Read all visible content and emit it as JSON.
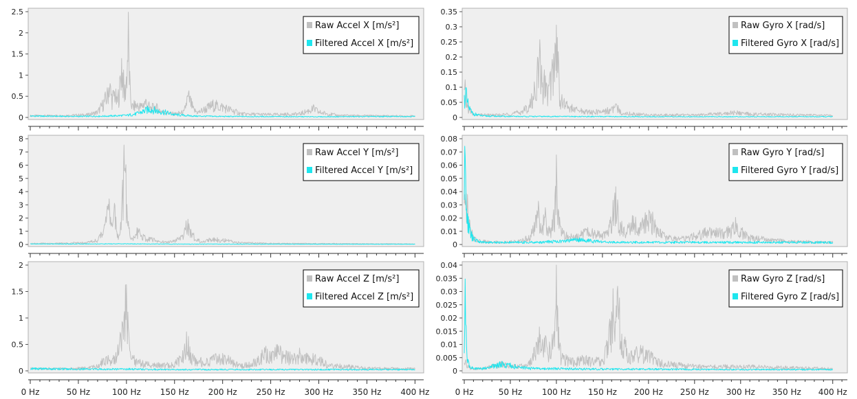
{
  "colors": {
    "raw": "#c0c0c0",
    "filtered": "#1ee6ee",
    "plot_bg": "#efefef",
    "frame": "#b0b0b0",
    "tick_text": "#222222"
  },
  "x_axis": {
    "ticks": [
      0,
      50,
      100,
      150,
      200,
      250,
      300,
      350,
      400
    ],
    "tick_labels": [
      "0 Hz",
      "50 Hz",
      "100 Hz",
      "150 Hz",
      "200 Hz",
      "250 Hz",
      "300 Hz",
      "350 Hz",
      "400 Hz"
    ],
    "range": [
      0,
      410
    ]
  },
  "chart_data": [
    {
      "type": "line",
      "id": "accel-x",
      "legend_position": "top-right",
      "legend": [
        "Raw Accel X [m/s²]",
        "Filtered Accel X [m/s²]"
      ],
      "ylim": [
        0,
        2.5
      ],
      "yticks": [
        0,
        0.5,
        1,
        1.5,
        2,
        2.5
      ],
      "ytick_labels": [
        "0",
        "0.5",
        "1",
        "1.5",
        "2",
        "2.5"
      ],
      "series": [
        {
          "name": "Raw Accel X [m/s²]",
          "role": "raw",
          "x": [
            0,
            20,
            40,
            60,
            70,
            75,
            80,
            82,
            85,
            88,
            90,
            93,
            95,
            98,
            100,
            102,
            103,
            104,
            106,
            110,
            115,
            120,
            125,
            130,
            135,
            140,
            145,
            150,
            160,
            163,
            165,
            170,
            175,
            190,
            200,
            210,
            220,
            250,
            280,
            290,
            295,
            300,
            320,
            350,
            400
          ],
          "y": [
            0.05,
            0.05,
            0.06,
            0.08,
            0.15,
            0.35,
            0.6,
            0.95,
            0.5,
            0.7,
            0.4,
            0.8,
            1.55,
            0.6,
            1.1,
            2.2,
            1.3,
            0.6,
            0.3,
            0.35,
            0.3,
            0.45,
            0.25,
            0.3,
            0.2,
            0.15,
            0.12,
            0.1,
            0.15,
            0.5,
            0.55,
            0.2,
            0.15,
            0.35,
            0.3,
            0.2,
            0.1,
            0.08,
            0.1,
            0.2,
            0.25,
            0.15,
            0.06,
            0.05,
            0.04
          ]
        },
        {
          "name": "Filtered Accel X [m/s²]",
          "role": "filtered",
          "x": [
            0,
            50,
            80,
            100,
            110,
            120,
            125,
            130,
            140,
            150,
            170,
            200,
            300,
            400
          ],
          "y": [
            0.04,
            0.03,
            0.04,
            0.06,
            0.1,
            0.2,
            0.25,
            0.2,
            0.15,
            0.08,
            0.04,
            0.03,
            0.02,
            0.03
          ]
        }
      ]
    },
    {
      "type": "line",
      "id": "gyro-x",
      "legend_position": "top-right",
      "legend": [
        "Raw Gyro X [rad/s]",
        "Filtered Gyro X [rad/s]"
      ],
      "ylim": [
        0,
        0.35
      ],
      "yticks": [
        0,
        0.05,
        0.1,
        0.15,
        0.2,
        0.25,
        0.3,
        0.35
      ],
      "ytick_labels": [
        "0",
        "0.05",
        "0.1",
        "0.15",
        "0.2",
        "0.25",
        "0.3",
        "0.35"
      ],
      "series": [
        {
          "name": "Raw Gyro X [rad/s]",
          "role": "raw",
          "x": [
            0,
            1,
            2,
            5,
            10,
            20,
            40,
            60,
            70,
            75,
            80,
            82,
            85,
            88,
            90,
            95,
            98,
            100,
            102,
            104,
            110,
            120,
            140,
            160,
            163,
            165,
            170,
            180,
            200,
            250,
            280,
            295,
            300,
            350,
            400
          ],
          "y": [
            0.09,
            0.1,
            0.06,
            0.03,
            0.01,
            0.01,
            0.01,
            0.02,
            0.04,
            0.08,
            0.18,
            0.21,
            0.12,
            0.14,
            0.09,
            0.16,
            0.22,
            0.32,
            0.2,
            0.07,
            0.05,
            0.03,
            0.02,
            0.03,
            0.04,
            0.04,
            0.02,
            0.015,
            0.01,
            0.01,
            0.015,
            0.02,
            0.015,
            0.01,
            0.008
          ]
        },
        {
          "name": "Filtered Gyro X [rad/s]",
          "role": "filtered",
          "x": [
            0,
            1,
            2,
            3,
            5,
            8,
            10,
            15,
            20,
            50,
            100,
            200,
            300,
            400
          ],
          "y": [
            0.07,
            0.1,
            0.09,
            0.06,
            0.04,
            0.02,
            0.015,
            0.01,
            0.006,
            0.004,
            0.004,
            0.003,
            0.003,
            0.003
          ]
        }
      ]
    },
    {
      "type": "line",
      "id": "accel-y",
      "legend_position": "top-right",
      "legend": [
        "Raw Accel Y [m/s²]",
        "Filtered Accel Y [m/s²]"
      ],
      "ylim": [
        0,
        8
      ],
      "yticks": [
        0,
        1,
        2,
        3,
        4,
        5,
        6,
        7,
        8
      ],
      "ytick_labels": [
        "0",
        "1",
        "2",
        "3",
        "4",
        "5",
        "6",
        "7",
        "8"
      ],
      "series": [
        {
          "name": "Raw Accel Y [m/s²]",
          "role": "raw",
          "x": [
            0,
            20,
            40,
            60,
            70,
            75,
            78,
            80,
            83,
            85,
            88,
            90,
            92,
            95,
            97,
            99,
            100,
            102,
            104,
            108,
            112,
            120,
            130,
            140,
            150,
            160,
            162,
            165,
            168,
            172,
            180,
            190,
            200,
            210,
            220,
            250,
            300,
            350,
            400
          ],
          "y": [
            0.1,
            0.1,
            0.12,
            0.2,
            0.4,
            1.0,
            2.5,
            5.2,
            2.0,
            1.5,
            2.8,
            1.0,
            0.8,
            2.5,
            5.5,
            7.8,
            4.0,
            1.5,
            0.8,
            0.6,
            1.2,
            0.5,
            0.4,
            0.2,
            0.3,
            0.8,
            1.7,
            1.8,
            1.0,
            0.4,
            0.3,
            0.5,
            0.4,
            0.25,
            0.15,
            0.1,
            0.08,
            0.06,
            0.05
          ]
        },
        {
          "name": "Filtered Accel Y [m/s²]",
          "role": "filtered",
          "x": [
            0,
            50,
            100,
            150,
            200,
            300,
            400
          ],
          "y": [
            0.05,
            0.05,
            0.06,
            0.04,
            0.04,
            0.03,
            0.03
          ]
        }
      ]
    },
    {
      "type": "line",
      "id": "gyro-y",
      "legend_position": "top-right",
      "legend": [
        "Raw Gyro Y [rad/s]",
        "Filtered Gyro Y [rad/s]"
      ],
      "ylim": [
        0,
        0.08
      ],
      "yticks": [
        0,
        0.01,
        0.02,
        0.03,
        0.04,
        0.05,
        0.06,
        0.07,
        0.08
      ],
      "ytick_labels": [
        "0",
        "0.01",
        "0.02",
        "0.03",
        "0.04",
        "0.05",
        "0.06",
        "0.07",
        "0.08"
      ],
      "series": [
        {
          "name": "Raw Gyro Y [rad/s]",
          "role": "raw",
          "x": [
            0,
            1,
            2,
            3,
            5,
            8,
            10,
            15,
            20,
            40,
            60,
            70,
            75,
            78,
            80,
            83,
            85,
            88,
            90,
            95,
            98,
            100,
            102,
            105,
            110,
            120,
            130,
            140,
            150,
            155,
            160,
            163,
            165,
            168,
            170,
            175,
            180,
            185,
            190,
            195,
            200,
            205,
            210,
            220,
            240,
            260,
            270,
            280,
            290,
            293,
            296,
            300,
            310,
            350,
            400
          ],
          "y": [
            0.05,
            0.07,
            0.05,
            0.035,
            0.02,
            0.01,
            0.006,
            0.004,
            0.003,
            0.002,
            0.003,
            0.006,
            0.012,
            0.02,
            0.033,
            0.02,
            0.015,
            0.025,
            0.012,
            0.015,
            0.025,
            0.058,
            0.03,
            0.012,
            0.008,
            0.006,
            0.012,
            0.01,
            0.008,
            0.01,
            0.02,
            0.04,
            0.035,
            0.022,
            0.015,
            0.012,
            0.02,
            0.018,
            0.012,
            0.02,
            0.022,
            0.02,
            0.012,
            0.006,
            0.005,
            0.01,
            0.012,
            0.01,
            0.013,
            0.018,
            0.015,
            0.012,
            0.006,
            0.003,
            0.002
          ]
        },
        {
          "name": "Filtered Gyro Y [rad/s]",
          "role": "filtered",
          "x": [
            0,
            1,
            2,
            3,
            4,
            5,
            8,
            10,
            15,
            20,
            40,
            80,
            100,
            110,
            120,
            130,
            140,
            160,
            200,
            300,
            400
          ],
          "y": [
            0.05,
            0.07,
            0.03,
            0.045,
            0.02,
            0.015,
            0.008,
            0.005,
            0.003,
            0.002,
            0.002,
            0.002,
            0.003,
            0.003,
            0.005,
            0.004,
            0.003,
            0.002,
            0.002,
            0.002,
            0.002
          ]
        }
      ]
    },
    {
      "type": "line",
      "id": "accel-z",
      "legend_position": "top-right",
      "legend": [
        "Raw Accel Z [m/s²]",
        "Filtered Accel Z [m/s²]"
      ],
      "ylim": [
        0,
        2
      ],
      "yticks": [
        0,
        0.5,
        1,
        1.5,
        2
      ],
      "ytick_labels": [
        "0",
        "0.5",
        "1",
        "1.5",
        "2"
      ],
      "series": [
        {
          "name": "Raw Accel Z [m/s²]",
          "role": "raw",
          "x": [
            0,
            20,
            40,
            60,
            70,
            80,
            85,
            90,
            95,
            98,
            100,
            102,
            105,
            110,
            120,
            140,
            150,
            160,
            163,
            165,
            168,
            172,
            180,
            200,
            210,
            220,
            230,
            240,
            245,
            250,
            255,
            260,
            270,
            280,
            290,
            300,
            310,
            330,
            350,
            400
          ],
          "y": [
            0.05,
            0.05,
            0.05,
            0.07,
            0.1,
            0.3,
            0.25,
            0.35,
            0.8,
            1.1,
            1.65,
            0.8,
            0.3,
            0.2,
            0.15,
            0.12,
            0.15,
            0.35,
            0.7,
            0.5,
            0.3,
            0.25,
            0.2,
            0.3,
            0.2,
            0.12,
            0.15,
            0.3,
            0.4,
            0.35,
            0.5,
            0.4,
            0.3,
            0.35,
            0.3,
            0.25,
            0.12,
            0.1,
            0.06,
            0.05
          ]
        },
        {
          "name": "Filtered Accel Z [m/s²]",
          "role": "filtered",
          "x": [
            0,
            50,
            100,
            150,
            200,
            300,
            400
          ],
          "y": [
            0.05,
            0.04,
            0.04,
            0.03,
            0.03,
            0.03,
            0.03
          ]
        }
      ]
    },
    {
      "type": "line",
      "id": "gyro-z",
      "legend_position": "top-right",
      "legend": [
        "Raw Gyro Z [rad/s]",
        "Filtered Gyro Z [rad/s]"
      ],
      "ylim": [
        0,
        0.04
      ],
      "yticks": [
        0,
        0.005,
        0.01,
        0.015,
        0.02,
        0.025,
        0.03,
        0.035,
        0.04
      ],
      "ytick_labels": [
        "0",
        "0.005",
        "0.01",
        "0.015",
        "0.02",
        "0.025",
        "0.03",
        "0.035",
        "0.04"
      ],
      "series": [
        {
          "name": "Raw Gyro Z [rad/s]",
          "role": "raw",
          "x": [
            0,
            1,
            2,
            3,
            5,
            10,
            20,
            30,
            40,
            50,
            60,
            70,
            75,
            78,
            80,
            83,
            85,
            88,
            90,
            95,
            98,
            100,
            102,
            105,
            110,
            120,
            130,
            140,
            150,
            155,
            160,
            163,
            165,
            168,
            170,
            175,
            180,
            190,
            200,
            210,
            220,
            250,
            300,
            350,
            400
          ],
          "y": [
            0.003,
            0.005,
            0.004,
            0.002,
            0.0015,
            0.001,
            0.001,
            0.002,
            0.003,
            0.002,
            0.002,
            0.003,
            0.006,
            0.012,
            0.018,
            0.01,
            0.01,
            0.015,
            0.008,
            0.012,
            0.018,
            0.037,
            0.015,
            0.006,
            0.005,
            0.004,
            0.005,
            0.004,
            0.005,
            0.01,
            0.02,
            0.03,
            0.025,
            0.028,
            0.015,
            0.01,
            0.006,
            0.008,
            0.007,
            0.004,
            0.003,
            0.002,
            0.002,
            0.0015,
            0.001
          ]
        },
        {
          "name": "Filtered Gyro Z [rad/s]",
          "role": "filtered",
          "x": [
            0,
            1,
            2,
            3,
            5,
            8,
            10,
            20,
            30,
            40,
            50,
            60,
            80,
            100,
            150,
            200,
            300,
            400
          ],
          "y": [
            0.01,
            0.03,
            0.015,
            0.006,
            0.003,
            0.0015,
            0.001,
            0.001,
            0.002,
            0.003,
            0.0025,
            0.0015,
            0.001,
            0.001,
            0.0008,
            0.0008,
            0.0006,
            0.0006
          ]
        }
      ]
    }
  ]
}
